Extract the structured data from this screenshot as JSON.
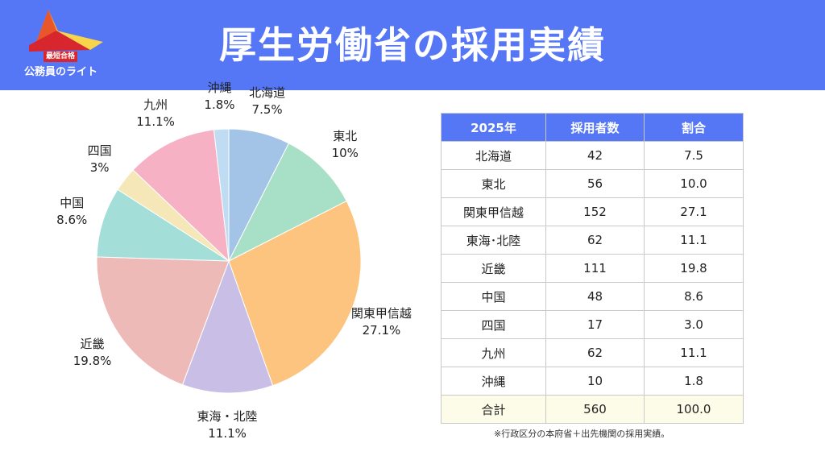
{
  "header": {
    "title": "厚生労働省の採用実績",
    "logo_badge": "最短合格",
    "logo_text": "公務員のライト"
  },
  "chart_data": {
    "type": "pie",
    "categories": [
      "北海道",
      "東北",
      "関東甲信越",
      "東海・北陸",
      "近畿",
      "中国",
      "四国",
      "九州",
      "沖縄"
    ],
    "values": [
      7.5,
      10.0,
      27.1,
      11.1,
      19.8,
      8.6,
      3.0,
      11.1,
      1.8
    ],
    "value_labels": [
      "7.5%",
      "10%",
      "27.1%",
      "11.1%",
      "19.8%",
      "8.6%",
      "3%",
      "11.1%",
      "1.8%"
    ],
    "colors": [
      "#a3c4e6",
      "#a7e0c6",
      "#fdc47f",
      "#c9bfe6",
      "#eebab7",
      "#a3ded9",
      "#f6e7b8",
      "#f7b1c4",
      "#bfdcf2"
    ],
    "start_angle": "12 o'clock",
    "direction": "clockwise"
  },
  "table": {
    "headers": [
      "2025年",
      "採用者数",
      "割合"
    ],
    "rows": [
      [
        "北海道",
        "42",
        "7.5"
      ],
      [
        "東北",
        "56",
        "10.0"
      ],
      [
        "関東甲信越",
        "152",
        "27.1"
      ],
      [
        "東海･北陸",
        "62",
        "11.1"
      ],
      [
        "近畿",
        "111",
        "19.8"
      ],
      [
        "中国",
        "48",
        "8.6"
      ],
      [
        "四国",
        "17",
        "3.0"
      ],
      [
        "九州",
        "62",
        "11.1"
      ],
      [
        "沖縄",
        "10",
        "1.8"
      ]
    ],
    "total": [
      "合計",
      "560",
      "100.0"
    ],
    "header_color": "#5577f6",
    "total_row_color": "#fdfce9"
  },
  "note": "※行政区分の本府省＋出先機関の採用実績。"
}
